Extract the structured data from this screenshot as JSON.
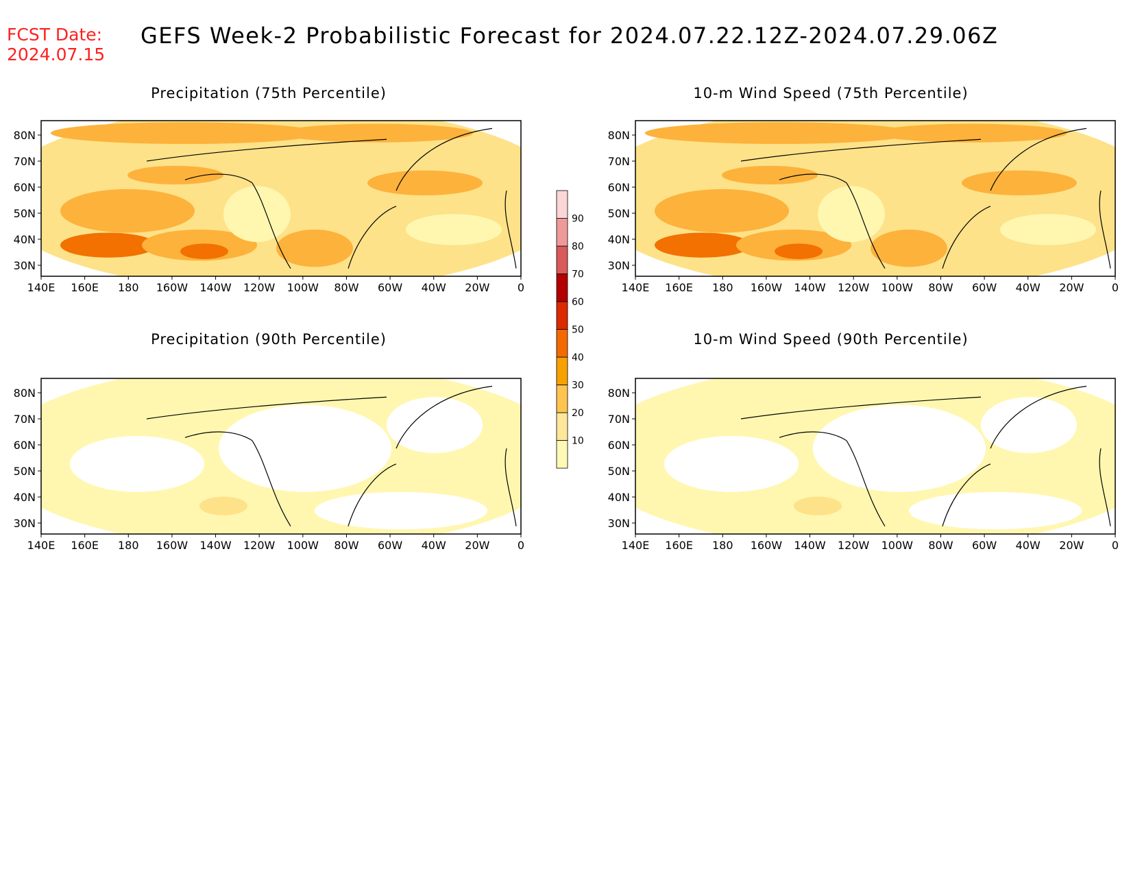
{
  "header": {
    "fcst_label": "FCST Date:",
    "fcst_date": "2024.07.15",
    "title": "GEFS Week-2 Probabilistic Forecast for 2024.07.22.12Z-2024.07.29.06Z"
  },
  "panels": [
    {
      "id": "p75",
      "title": "Precipitation (75th Percentile)",
      "shade": "high"
    },
    {
      "id": "p90",
      "title": "Precipitation (90th Percentile)",
      "shade": "low"
    },
    {
      "id": "w75",
      "title": "10-m Wind Speed (75th Percentile)",
      "shade": "high"
    },
    {
      "id": "w90",
      "title": "10-m Wind Speed (90th Percentile)",
      "shade": "low"
    }
  ],
  "axes": {
    "lat_labels": [
      "80N",
      "70N",
      "60N",
      "50N",
      "40N",
      "30N"
    ],
    "lon_labels": [
      "140E",
      "160E",
      "180",
      "160W",
      "140W",
      "120W",
      "100W",
      "80W",
      "60W",
      "40W",
      "20W",
      "0"
    ]
  },
  "colorbar": {
    "levels": [
      "10",
      "20",
      "30",
      "40",
      "50",
      "60",
      "70",
      "80",
      "90"
    ],
    "colors": [
      "#fff9b5",
      "#fde79b",
      "#fdc44f",
      "#f7a100",
      "#f26a00",
      "#dd2a00",
      "#b30000",
      "#d95a5a",
      "#ef9a9a",
      "#fbd6d6"
    ]
  },
  "map_style": {
    "border": "#000000",
    "coast": "#000000",
    "shade_light": "#fff7b0",
    "shade_mid": "#fde289",
    "shade_orange": "#fdb23c",
    "shade_deep": "#f27100",
    "shade_red": "#d62a00"
  }
}
